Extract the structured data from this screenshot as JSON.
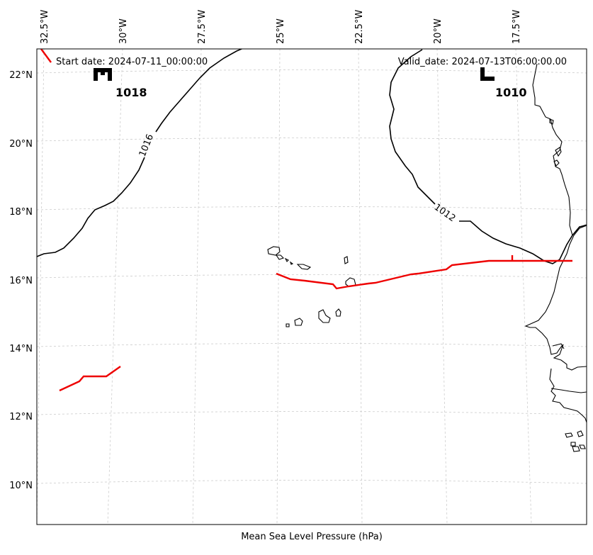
{
  "map": {
    "start_date": "Start date: 2024-07-11_00:00:00",
    "valid_date": "Valid_date: 2024-07-13T06:00:00.00",
    "xlabel": "Mean Sea Level Pressure (hPa)",
    "lon_labels": [
      "32.5°W",
      "30°W",
      "27.5°W",
      "25°W",
      "22.5°W",
      "20°W",
      "17.5°W"
    ],
    "lat_labels": [
      "22°N",
      "20°N",
      "18°N",
      "16°N",
      "14°N",
      "12°N",
      "10°N"
    ],
    "pressure_centers": [
      {
        "type": "H",
        "value": "1018"
      },
      {
        "type": "L",
        "value": "1010"
      }
    ],
    "contour_labels": [
      "1016",
      "1012"
    ],
    "colors": {
      "isobar": "#000000",
      "track": "#ee0000",
      "coastline": "#000000",
      "gridline": "#cccccc"
    }
  }
}
